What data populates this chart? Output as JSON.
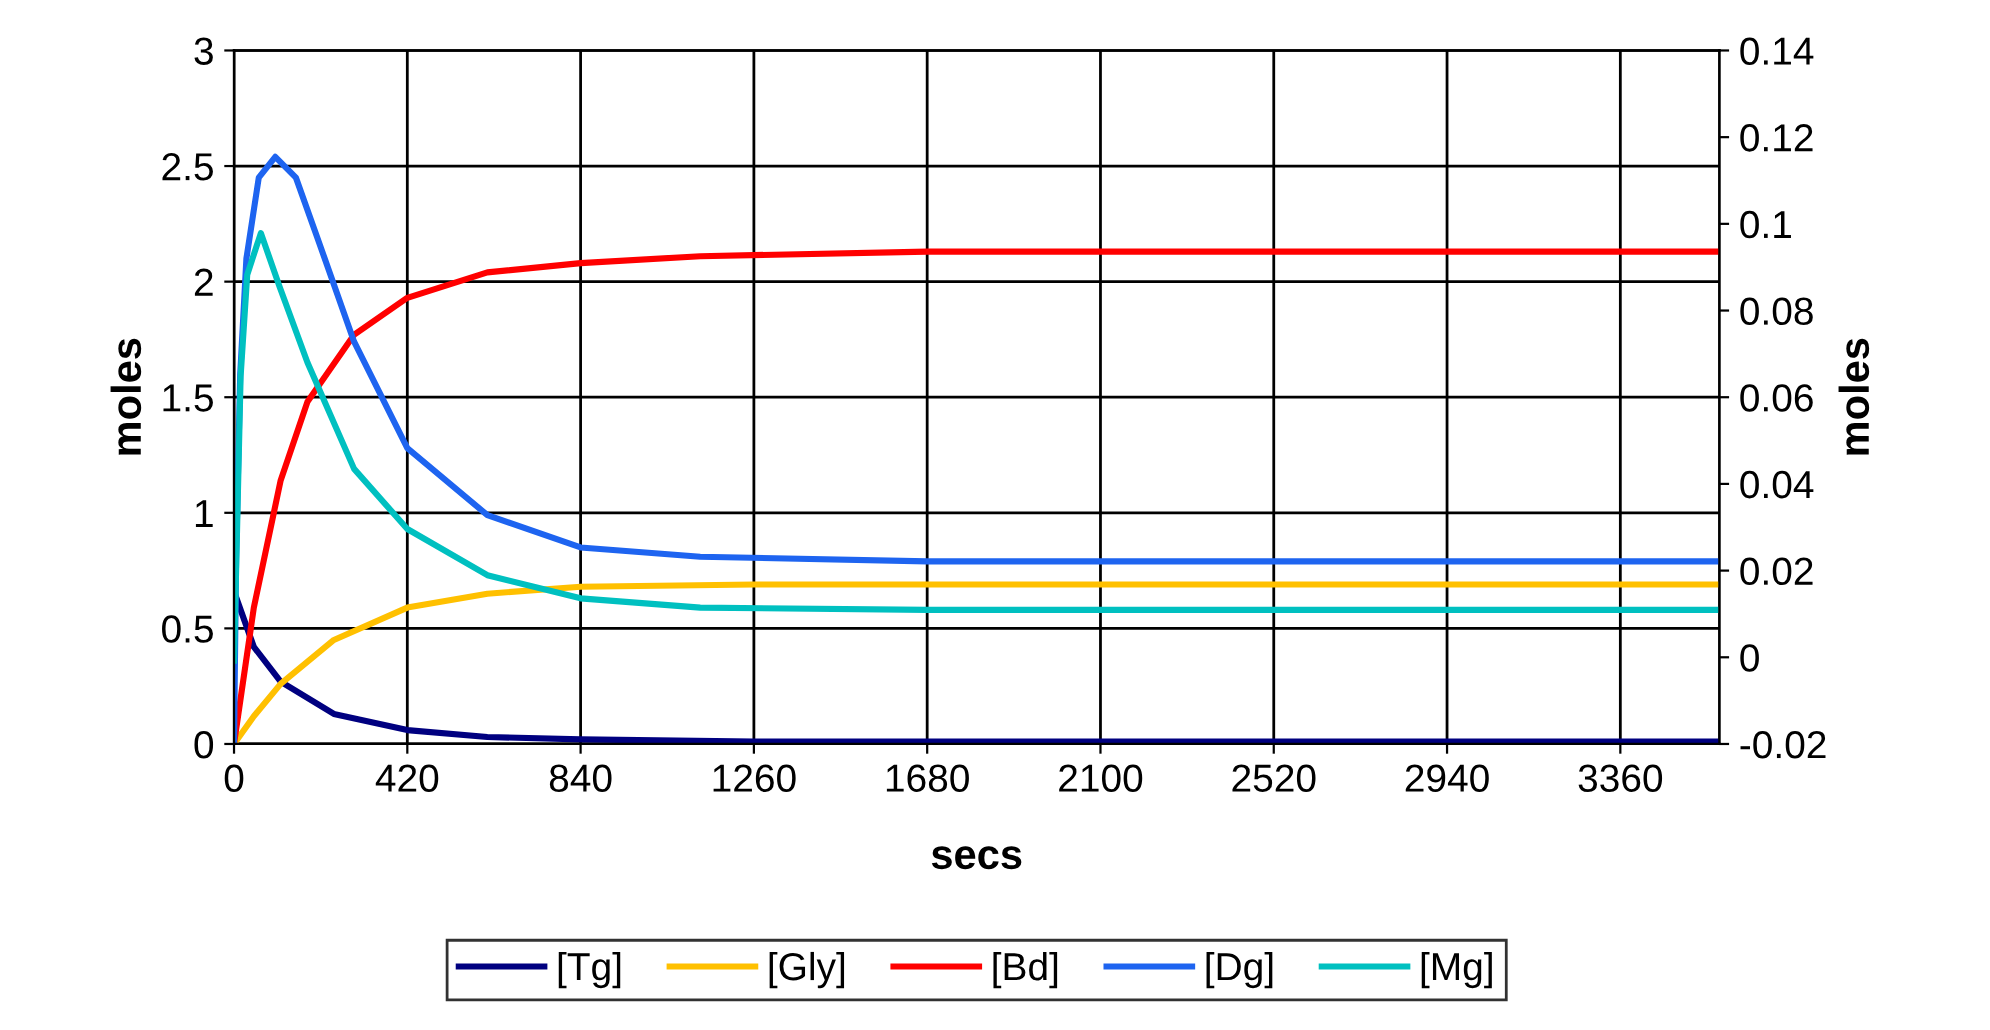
{
  "chart_data": {
    "type": "line",
    "xlabel": "secs",
    "ylabel": "moles",
    "y2label": "moles",
    "xlim": [
      0,
      3600
    ],
    "xticks": [
      0,
      420,
      840,
      1260,
      1680,
      2100,
      2520,
      2940,
      3360
    ],
    "ylim": [
      0,
      3
    ],
    "yticks": [
      0,
      0.5,
      1,
      1.5,
      2,
      2.5,
      3
    ],
    "y2lim": [
      -0.02,
      0.14
    ],
    "y2ticks": [
      {
        "value": -0.02,
        "label": "-0.02"
      },
      0,
      0.02,
      0.04,
      0.06,
      0.08,
      0.1,
      0.12,
      0.14
    ],
    "grid": true,
    "legend": "bottom",
    "marker": "none",
    "line_style": "solid",
    "series": [
      {
        "name": "[Tg]",
        "color": "#000080",
        "x": [
          0,
          48,
          113,
          242,
          420,
          614,
          840,
          1260,
          2100,
          3600
        ],
        "values": [
          0.66,
          0.42,
          0.27,
          0.13,
          0.06,
          0.03,
          0.02,
          0.01,
          0.01,
          0.01
        ]
      },
      {
        "name": "[Gly]",
        "color": "#ffc000",
        "x": [
          0,
          48,
          113,
          242,
          420,
          614,
          840,
          1260,
          2100,
          3600
        ],
        "values": [
          0,
          0.12,
          0.26,
          0.45,
          0.59,
          0.65,
          0.68,
          0.69,
          0.69,
          0.69
        ]
      },
      {
        "name": "[Bd]",
        "color": "#ff0000",
        "x": [
          0,
          48,
          113,
          178,
          291,
          420,
          614,
          840,
          1130,
          1680,
          3600
        ],
        "values": [
          0,
          0.59,
          1.14,
          1.48,
          1.77,
          1.93,
          2.04,
          2.08,
          2.11,
          2.13,
          2.13
        ]
      },
      {
        "name": "[Dg]",
        "color": "#1e64f0",
        "x": [
          0,
          5,
          15,
          30,
          60,
          100,
          150,
          200,
          291,
          420,
          614,
          840,
          1130,
          1680,
          3600
        ],
        "values": [
          0,
          0.8,
          1.6,
          2.1,
          2.45,
          2.54,
          2.45,
          2.2,
          1.74,
          1.28,
          0.99,
          0.85,
          0.81,
          0.79,
          0.79
        ]
      },
      {
        "name": "[Mg]",
        "color": "#00c0c0",
        "x": [
          0,
          16,
          32,
          65,
          110,
          178,
          291,
          420,
          614,
          840,
          1130,
          1680,
          3600
        ],
        "values": [
          0.36,
          1.59,
          2.03,
          2.21,
          1.98,
          1.65,
          1.19,
          0.93,
          0.73,
          0.63,
          0.59,
          0.58,
          0.58
        ]
      }
    ]
  }
}
